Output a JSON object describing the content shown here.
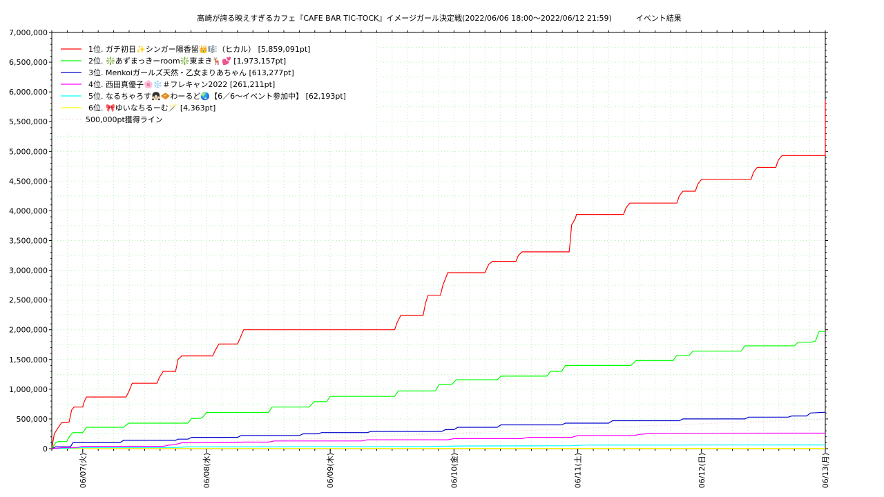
{
  "chart_data": {
    "type": "line",
    "title": "高崎が誇る映えすぎるカフェ『CAFE BAR TIC-TOCK』イメージガール決定戦(2022/06/06 18:00～2022/06/12 21:59)          イベント結果",
    "xlabel": "",
    "ylabel": "",
    "xlim": [
      0,
      6.25
    ],
    "ylim": [
      0,
      7000000
    ],
    "grid": true,
    "legend_position": "top-left",
    "x_tick_labels": [
      {
        "x": 0.25,
        "label": "06/07(火)"
      },
      {
        "x": 1.25,
        "label": "06/08(水)"
      },
      {
        "x": 2.25,
        "label": "06/09(木)"
      },
      {
        "x": 3.25,
        "label": "06/10(金)"
      },
      {
        "x": 4.25,
        "label": "06/11(土)"
      },
      {
        "x": 5.25,
        "label": "06/12(日)"
      },
      {
        "x": 6.25,
        "label": "06/13(月)"
      }
    ],
    "y_ticks": [
      0,
      500000,
      1000000,
      1500000,
      2000000,
      2500000,
      3000000,
      3500000,
      4000000,
      4500000,
      5000000,
      5500000,
      6000000,
      6500000,
      7000000
    ],
    "y_tick_labels": [
      "0",
      "500,000",
      "1,000,000",
      "1,500,000",
      "2,000,000",
      "2,500,000",
      "3,000,000",
      "3,500,000",
      "4,000,000",
      "4,500,000",
      "5,000,000",
      "5,500,000",
      "6,000,000",
      "6,500,000",
      "7,000,000"
    ],
    "series": [
      {
        "name": "1位. ガチ初日✨シンガー陽香留👑🎼（ヒカル） [5,859,091pt]",
        "color": "#ff0000",
        "points": [
          [
            0,
            0
          ],
          [
            0.02,
            250000
          ],
          [
            0.05,
            350000
          ],
          [
            0.08,
            440000
          ],
          [
            0.12,
            440000
          ],
          [
            0.14,
            450000
          ],
          [
            0.16,
            650000
          ],
          [
            0.18,
            700000
          ],
          [
            0.25,
            700000
          ],
          [
            0.26,
            780000
          ],
          [
            0.28,
            870000
          ],
          [
            0.58,
            870000
          ],
          [
            0.6,
            870000
          ],
          [
            0.62,
            950000
          ],
          [
            0.65,
            1100000
          ],
          [
            0.85,
            1100000
          ],
          [
            0.87,
            1200000
          ],
          [
            0.9,
            1300000
          ],
          [
            1.0,
            1300000
          ],
          [
            1.02,
            1500000
          ],
          [
            1.05,
            1560000
          ],
          [
            1.3,
            1560000
          ],
          [
            1.32,
            1650000
          ],
          [
            1.35,
            1760000
          ],
          [
            1.5,
            1760000
          ],
          [
            1.52,
            1850000
          ],
          [
            1.55,
            2000000
          ],
          [
            2.77,
            2000000
          ],
          [
            2.79,
            2120000
          ],
          [
            2.82,
            2240000
          ],
          [
            3.0,
            2240000
          ],
          [
            3.02,
            2450000
          ],
          [
            3.04,
            2580000
          ],
          [
            3.14,
            2580000
          ],
          [
            3.16,
            2750000
          ],
          [
            3.2,
            2960000
          ],
          [
            3.5,
            2960000
          ],
          [
            3.53,
            3100000
          ],
          [
            3.56,
            3150000
          ],
          [
            3.75,
            3150000
          ],
          [
            3.77,
            3250000
          ],
          [
            3.8,
            3310000
          ],
          [
            4.18,
            3310000
          ],
          [
            4.19,
            3500000
          ],
          [
            4.2,
            3760000
          ],
          [
            4.23,
            3870000
          ],
          [
            4.24,
            3940000
          ],
          [
            4.62,
            3940000
          ],
          [
            4.64,
            4050000
          ],
          [
            4.67,
            4130000
          ],
          [
            5.05,
            4130000
          ],
          [
            5.07,
            4250000
          ],
          [
            5.1,
            4330000
          ],
          [
            5.2,
            4330000
          ],
          [
            5.22,
            4450000
          ],
          [
            5.25,
            4530000
          ],
          [
            5.65,
            4530000
          ],
          [
            5.67,
            4650000
          ],
          [
            5.7,
            4730000
          ],
          [
            5.85,
            4730000
          ],
          [
            5.87,
            4850000
          ],
          [
            5.9,
            4930000
          ],
          [
            6.26,
            4930000
          ],
          [
            6.28,
            5100000
          ],
          [
            6.3,
            5200000
          ],
          [
            6.32,
            5500000
          ],
          [
            6.33,
            5850000
          ],
          [
            6.43,
            5859091
          ]
        ]
      },
      {
        "name": "2位. ❇️あずまっきーroom❇️東まき🦌💕 [1,973,157pt]",
        "color": "#00ff00",
        "points": [
          [
            0,
            0
          ],
          [
            0.03,
            100000
          ],
          [
            0.05,
            120000
          ],
          [
            0.12,
            120000
          ],
          [
            0.15,
            230000
          ],
          [
            0.17,
            270000
          ],
          [
            0.25,
            270000
          ],
          [
            0.28,
            360000
          ],
          [
            0.58,
            360000
          ],
          [
            0.62,
            430000
          ],
          [
            1.1,
            430000
          ],
          [
            1.13,
            510000
          ],
          [
            1.2,
            510000
          ],
          [
            1.22,
            530000
          ],
          [
            1.25,
            610000
          ],
          [
            1.75,
            610000
          ],
          [
            1.78,
            700000
          ],
          [
            2.08,
            700000
          ],
          [
            2.12,
            790000
          ],
          [
            2.22,
            790000
          ],
          [
            2.25,
            880000
          ],
          [
            2.77,
            880000
          ],
          [
            2.8,
            970000
          ],
          [
            3.1,
            970000
          ],
          [
            3.13,
            1080000
          ],
          [
            3.23,
            1080000
          ],
          [
            3.27,
            1160000
          ],
          [
            3.6,
            1160000
          ],
          [
            3.63,
            1220000
          ],
          [
            4.0,
            1220000
          ],
          [
            4.03,
            1300000
          ],
          [
            4.12,
            1300000
          ],
          [
            4.15,
            1400000
          ],
          [
            4.68,
            1400000
          ],
          [
            4.72,
            1480000
          ],
          [
            5.02,
            1480000
          ],
          [
            5.05,
            1570000
          ],
          [
            5.15,
            1570000
          ],
          [
            5.18,
            1640000
          ],
          [
            5.57,
            1640000
          ],
          [
            5.6,
            1730000
          ],
          [
            6.0,
            1730000
          ],
          [
            6.03,
            1790000
          ],
          [
            6.14,
            1790000
          ],
          [
            6.17,
            1810000
          ],
          [
            6.2,
            1970000
          ],
          [
            6.43,
            1973157
          ]
        ]
      },
      {
        "name": "3位. Menkoiガールズ天然・乙女まりあちゃん [613,277pt]",
        "color": "#0000cc",
        "points": [
          [
            0,
            0
          ],
          [
            0.03,
            30000
          ],
          [
            0.15,
            30000
          ],
          [
            0.17,
            100000
          ],
          [
            0.55,
            100000
          ],
          [
            0.58,
            140000
          ],
          [
            1.0,
            140000
          ],
          [
            1.02,
            160000
          ],
          [
            1.1,
            160000
          ],
          [
            1.13,
            190000
          ],
          [
            1.5,
            190000
          ],
          [
            1.53,
            220000
          ],
          [
            2.0,
            220000
          ],
          [
            2.03,
            250000
          ],
          [
            2.15,
            250000
          ],
          [
            2.18,
            270000
          ],
          [
            2.55,
            270000
          ],
          [
            2.58,
            290000
          ],
          [
            3.15,
            290000
          ],
          [
            3.18,
            320000
          ],
          [
            3.25,
            320000
          ],
          [
            3.28,
            360000
          ],
          [
            3.6,
            360000
          ],
          [
            3.63,
            400000
          ],
          [
            4.12,
            400000
          ],
          [
            4.15,
            430000
          ],
          [
            4.5,
            430000
          ],
          [
            4.53,
            470000
          ],
          [
            5.07,
            470000
          ],
          [
            5.1,
            500000
          ],
          [
            5.6,
            500000
          ],
          [
            5.63,
            530000
          ],
          [
            5.95,
            530000
          ],
          [
            5.98,
            550000
          ],
          [
            6.1,
            550000
          ],
          [
            6.13,
            600000
          ],
          [
            6.43,
            613277
          ]
        ]
      },
      {
        "name": "4位. 西田真優子🌸❄️＃フレキャン2022 [261,211pt]",
        "color": "#ff00ff",
        "points": [
          [
            0,
            0
          ],
          [
            0.1,
            20000
          ],
          [
            0.2,
            20000
          ],
          [
            0.25,
            40000
          ],
          [
            0.9,
            40000
          ],
          [
            0.95,
            60000
          ],
          [
            1.0,
            70000
          ],
          [
            1.05,
            100000
          ],
          [
            1.5,
            100000
          ],
          [
            1.55,
            110000
          ],
          [
            1.75,
            110000
          ],
          [
            1.8,
            130000
          ],
          [
            2.5,
            130000
          ],
          [
            2.55,
            150000
          ],
          [
            3.2,
            150000
          ],
          [
            3.25,
            170000
          ],
          [
            3.8,
            170000
          ],
          [
            3.85,
            190000
          ],
          [
            4.2,
            190000
          ],
          [
            4.25,
            220000
          ],
          [
            4.7,
            220000
          ],
          [
            4.75,
            240000
          ],
          [
            4.8,
            250000
          ],
          [
            4.85,
            260000
          ],
          [
            6.43,
            261211
          ]
        ]
      },
      {
        "name": "5位. なるちゃろす👧🏻🧇わーるど🌏【6／6〜イベント参加中】 [62,193pt]",
        "color": "#00ffff",
        "points": [
          [
            0,
            0
          ],
          [
            0.3,
            20000
          ],
          [
            1.0,
            20000
          ],
          [
            1.1,
            30000
          ],
          [
            3.0,
            35000
          ],
          [
            3.3,
            45000
          ],
          [
            4.2,
            50000
          ],
          [
            4.3,
            60000
          ],
          [
            6.43,
            62193
          ]
        ]
      },
      {
        "name": "6位. 🎀ゆいなちるーむ🪄 [4,363pt]",
        "color": "#ffff00",
        "points": [
          [
            0,
            0
          ],
          [
            0.5,
            3000
          ],
          [
            6.43,
            4363
          ]
        ]
      },
      {
        "name": "500,000pt獲得ライン",
        "color": "#e8b8b8",
        "dashed": true,
        "points": [
          [
            0,
            0
          ],
          [
            6.43,
            500000
          ]
        ]
      }
    ]
  }
}
